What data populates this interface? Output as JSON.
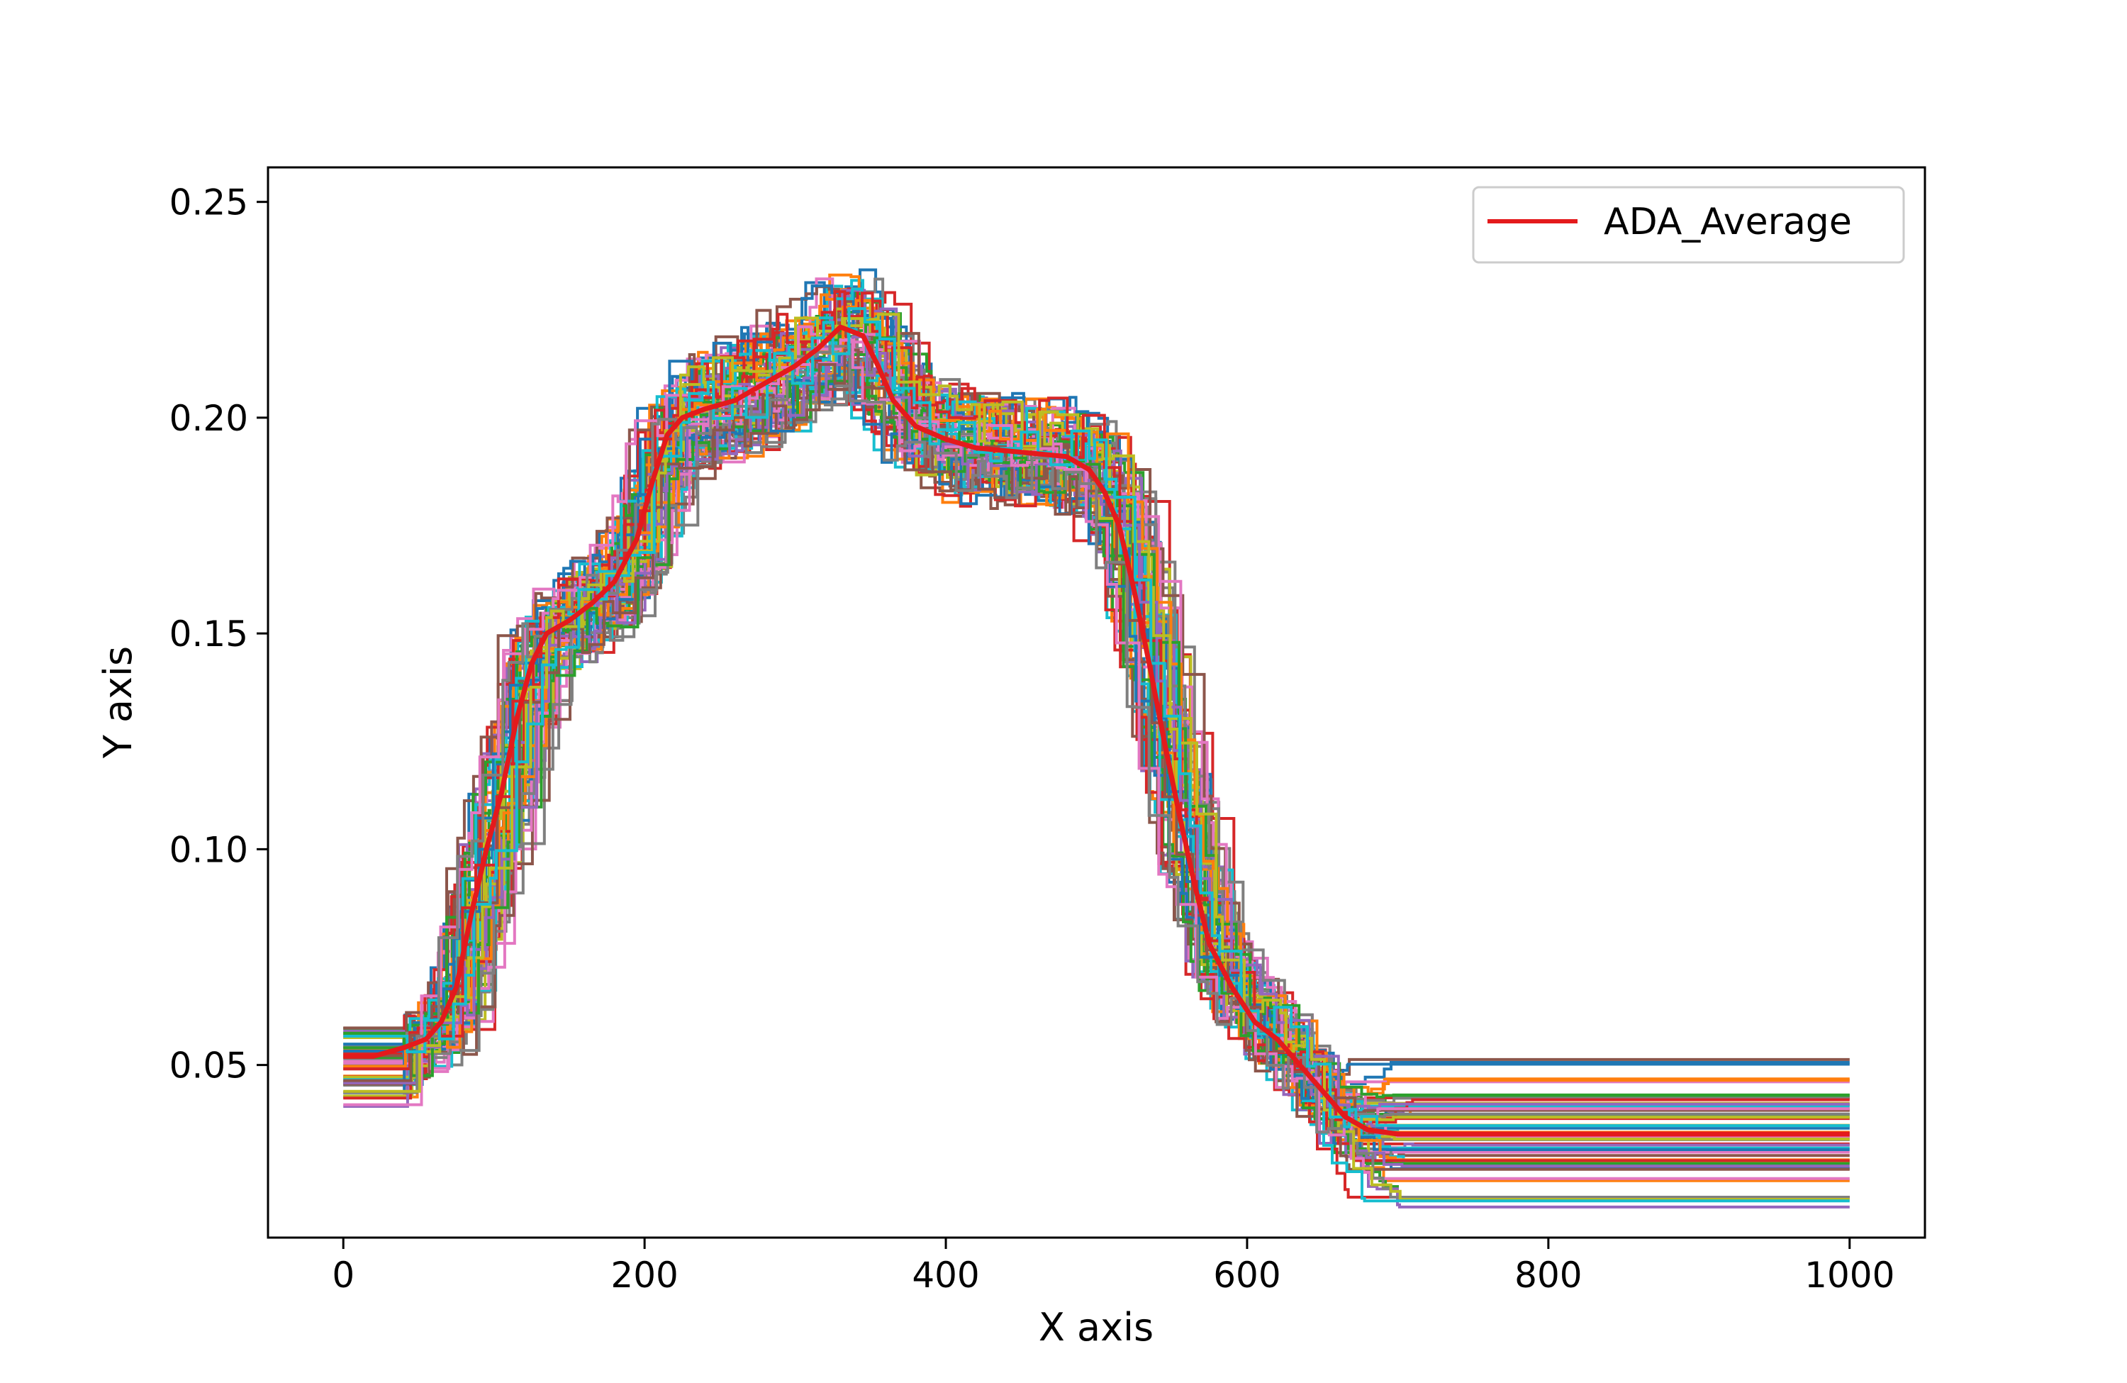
{
  "chart_data": {
    "type": "line",
    "title": "",
    "xlabel": "X axis",
    "ylabel": "Y axis",
    "xlim": [
      -50,
      1050
    ],
    "ylim": [
      0.01,
      0.258
    ],
    "xticks": [
      0,
      200,
      400,
      600,
      800,
      1000
    ],
    "xtick_labels": [
      "0",
      "200",
      "400",
      "600",
      "800",
      "1000"
    ],
    "yticks": [
      0.05,
      0.1,
      0.15,
      0.2,
      0.25
    ],
    "ytick_labels": [
      "0.05",
      "0.10",
      "0.15",
      "0.20",
      "0.25"
    ],
    "legend": {
      "placement": "upper right",
      "entries": [
        "ADA_Average"
      ]
    },
    "grid": false,
    "average_series": {
      "name": "ADA_Average",
      "color": "#e41a1c",
      "x": [
        0,
        20,
        40,
        55,
        65,
        75,
        85,
        95,
        105,
        115,
        125,
        135,
        150,
        165,
        180,
        195,
        205,
        215,
        225,
        240,
        260,
        280,
        300,
        315,
        330,
        345,
        355,
        365,
        380,
        400,
        420,
        450,
        480,
        495,
        505,
        515,
        525,
        535,
        545,
        555,
        565,
        575,
        590,
        605,
        620,
        635,
        650,
        665,
        680,
        700,
        750,
        800,
        900,
        1000
      ],
      "y": [
        0.052,
        0.052,
        0.054,
        0.056,
        0.06,
        0.068,
        0.085,
        0.1,
        0.113,
        0.13,
        0.143,
        0.15,
        0.153,
        0.157,
        0.162,
        0.172,
        0.185,
        0.196,
        0.2,
        0.202,
        0.204,
        0.208,
        0.212,
        0.216,
        0.221,
        0.219,
        0.212,
        0.204,
        0.198,
        0.195,
        0.193,
        0.192,
        0.191,
        0.188,
        0.183,
        0.175,
        0.16,
        0.143,
        0.125,
        0.108,
        0.092,
        0.078,
        0.068,
        0.06,
        0.056,
        0.05,
        0.044,
        0.038,
        0.035,
        0.034,
        0.034,
        0.034,
        0.034,
        0.034
      ]
    },
    "runs": {
      "count": 60,
      "colors": [
        "#1f77b4",
        "#ff7f0e",
        "#2ca02c",
        "#d62728",
        "#9467bd",
        "#8c564b",
        "#e377c2",
        "#7f7f7f",
        "#bcbd22",
        "#17becf"
      ],
      "start_range": [
        0.04,
        0.059
      ],
      "end_levels": [
        0.051,
        0.046,
        0.043,
        0.042,
        0.041,
        0.04,
        0.039,
        0.038,
        0.037,
        0.036,
        0.035,
        0.034,
        0.033,
        0.032,
        0.031,
        0.03,
        0.029,
        0.028,
        0.027,
        0.026,
        0.025,
        0.024,
        0.02,
        0.019,
        0.018
      ]
    }
  }
}
